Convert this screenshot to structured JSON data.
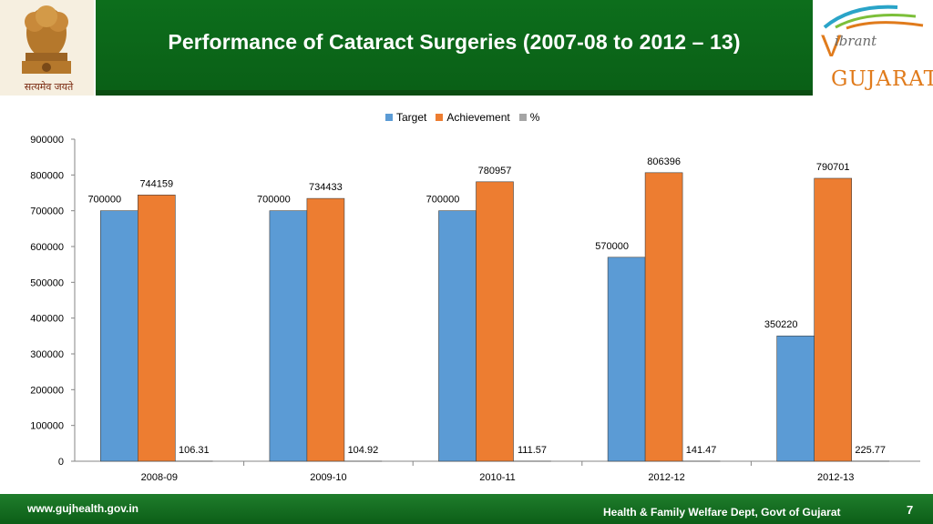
{
  "slide": {
    "title": "Performance of Cataract Surgeries (2007-08 to 2012 – 13)",
    "motto": "सत्यमेव जयते",
    "brand_prefix": "ibrant",
    "brand_name": "GUJARAT",
    "footer_url": "www.gujhealth.gov.in",
    "footer_dept": "Health & Family Welfare Dept, Govt of Gujarat",
    "page_number": "7",
    "colors": {
      "header_green": "#0d6e1c",
      "brand_orange": "#e07b1c"
    }
  },
  "chart_data": {
    "type": "bar",
    "categories": [
      "2008-09",
      "2009-10",
      "2010-11",
      "2012-12",
      "2012-13"
    ],
    "series": [
      {
        "name": "Target",
        "color": "#5b9bd5",
        "values": [
          700000,
          700000,
          700000,
          570000,
          350220
        ]
      },
      {
        "name": "Achievement",
        "color": "#ed7d31",
        "values": [
          744159,
          734433,
          780957,
          806396,
          790701
        ]
      },
      {
        "name": "%",
        "color": "#a5a5a5",
        "values": [
          106.31,
          104.92,
          111.57,
          141.47,
          225.77
        ]
      }
    ],
    "ylim": [
      0,
      900000
    ],
    "yticks": [
      0,
      100000,
      200000,
      300000,
      400000,
      500000,
      600000,
      700000,
      800000,
      900000
    ],
    "legend_position": "top",
    "grid": false,
    "data_labels": true
  }
}
